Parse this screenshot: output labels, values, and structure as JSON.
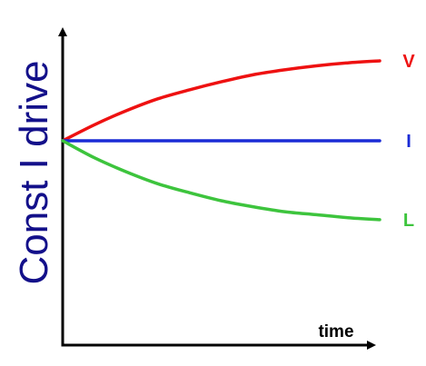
{
  "chart_data": {
    "type": "line",
    "title": "",
    "xlabel": "time",
    "ylabel": "Const I drive",
    "x": [
      0,
      0.1,
      0.2,
      0.3,
      0.4,
      0.5,
      0.6,
      0.7,
      0.8,
      0.9,
      1.0
    ],
    "xlim": [
      0,
      1.0
    ],
    "ylim": [
      -1.0,
      1.0
    ],
    "grid": false,
    "series": [
      {
        "name": "V",
        "color": "#ee1111",
        "values": [
          0,
          0.16,
          0.3,
          0.42,
          0.51,
          0.59,
          0.66,
          0.71,
          0.75,
          0.78,
          0.8
        ]
      },
      {
        "name": "I",
        "color": "#1a2bd6",
        "values": [
          0,
          0,
          0,
          0,
          0,
          0,
          0,
          0,
          0,
          0,
          0
        ]
      },
      {
        "name": "L",
        "color": "#3dc43d",
        "values": [
          0,
          -0.17,
          -0.31,
          -0.43,
          -0.52,
          -0.6,
          -0.66,
          -0.71,
          -0.74,
          -0.77,
          -0.79
        ]
      }
    ],
    "colors": {
      "axis": "#000000",
      "ylabel": "#13108a"
    }
  }
}
